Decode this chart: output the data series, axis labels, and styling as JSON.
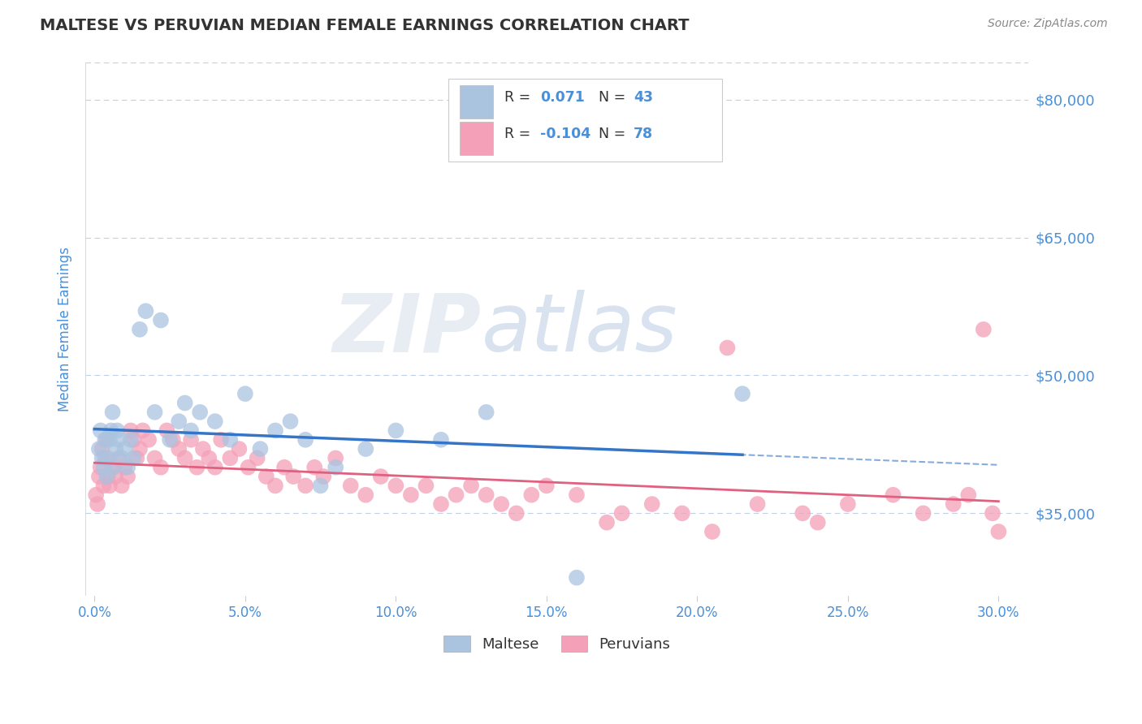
{
  "title": "MALTESE VS PERUVIAN MEDIAN FEMALE EARNINGS CORRELATION CHART",
  "source": "Source: ZipAtlas.com",
  "ylabel": "Median Female Earnings",
  "xlabel_ticks": [
    "0.0%",
    "5.0%",
    "10.0%",
    "15.0%",
    "20.0%",
    "25.0%",
    "30.0%"
  ],
  "xlabel_vals": [
    0.0,
    5.0,
    10.0,
    15.0,
    20.0,
    25.0,
    30.0
  ],
  "ytick_vals": [
    35000,
    50000,
    65000,
    80000
  ],
  "ytick_labels": [
    "$35,000",
    "$50,000",
    "$65,000",
    "$80,000"
  ],
  "ylim": [
    26000,
    84000
  ],
  "xlim": [
    -0.3,
    31.0
  ],
  "watermark": "ZIPatlas",
  "maltese_color": "#aac4e0",
  "peruvian_color": "#f4a0b8",
  "trend_maltese_color": "#3575c8",
  "trend_peruvian_color": "#e06080",
  "grid_color": "#c0d0e8",
  "bg_color": "#ffffff",
  "title_color": "#333333",
  "axis_label_color": "#4a90d9",
  "source_color": "#888888",
  "legend_maltese_r_label": "R = ",
  "legend_maltese_r_val": "0.071",
  "legend_maltese_n": "N = 43",
  "legend_peruvian_r_label": "R = ",
  "legend_peruvian_r_val": "-0.104",
  "legend_peruvian_n": "N = 78",
  "maltese_x": [
    0.15,
    0.2,
    0.25,
    0.3,
    0.35,
    0.4,
    0.45,
    0.5,
    0.55,
    0.6,
    0.65,
    0.7,
    0.75,
    0.8,
    0.9,
    1.0,
    1.1,
    1.2,
    1.3,
    1.5,
    1.7,
    2.0,
    2.2,
    2.5,
    2.8,
    3.0,
    3.2,
    3.5,
    4.0,
    4.5,
    5.0,
    5.5,
    6.0,
    6.5,
    7.0,
    7.5,
    8.0,
    9.0,
    10.0,
    11.5,
    13.0,
    16.0,
    21.5
  ],
  "maltese_y": [
    42000,
    44000,
    41000,
    40000,
    43000,
    39000,
    41000,
    43000,
    44000,
    46000,
    40000,
    42000,
    44000,
    43000,
    41000,
    42000,
    40000,
    43000,
    41000,
    55000,
    57000,
    46000,
    56000,
    43000,
    45000,
    47000,
    44000,
    46000,
    45000,
    43000,
    48000,
    42000,
    44000,
    45000,
    43000,
    38000,
    40000,
    42000,
    44000,
    43000,
    46000,
    28000,
    48000
  ],
  "peruvian_x": [
    0.05,
    0.1,
    0.15,
    0.2,
    0.25,
    0.3,
    0.35,
    0.4,
    0.45,
    0.5,
    0.6,
    0.7,
    0.8,
    0.9,
    1.0,
    1.1,
    1.2,
    1.3,
    1.4,
    1.5,
    1.6,
    1.8,
    2.0,
    2.2,
    2.4,
    2.6,
    2.8,
    3.0,
    3.2,
    3.4,
    3.6,
    3.8,
    4.0,
    4.2,
    4.5,
    4.8,
    5.1,
    5.4,
    5.7,
    6.0,
    6.3,
    6.6,
    7.0,
    7.3,
    7.6,
    8.0,
    8.5,
    9.0,
    9.5,
    10.0,
    10.5,
    11.0,
    11.5,
    12.0,
    12.5,
    13.0,
    13.5,
    14.0,
    14.5,
    15.0,
    16.0,
    17.0,
    17.5,
    18.5,
    19.5,
    20.5,
    21.0,
    22.0,
    23.5,
    24.0,
    25.0,
    26.5,
    27.5,
    28.5,
    29.0,
    29.5,
    29.8,
    30.0
  ],
  "peruvian_y": [
    37000,
    36000,
    39000,
    40000,
    42000,
    38000,
    41000,
    43000,
    39000,
    38000,
    40000,
    39000,
    41000,
    38000,
    40000,
    39000,
    44000,
    43000,
    41000,
    42000,
    44000,
    43000,
    41000,
    40000,
    44000,
    43000,
    42000,
    41000,
    43000,
    40000,
    42000,
    41000,
    40000,
    43000,
    41000,
    42000,
    40000,
    41000,
    39000,
    38000,
    40000,
    39000,
    38000,
    40000,
    39000,
    41000,
    38000,
    37000,
    39000,
    38000,
    37000,
    38000,
    36000,
    37000,
    38000,
    37000,
    36000,
    35000,
    37000,
    38000,
    37000,
    34000,
    35000,
    36000,
    35000,
    33000,
    53000,
    36000,
    35000,
    34000,
    36000,
    37000,
    35000,
    36000,
    37000,
    55000,
    35000,
    33000
  ]
}
